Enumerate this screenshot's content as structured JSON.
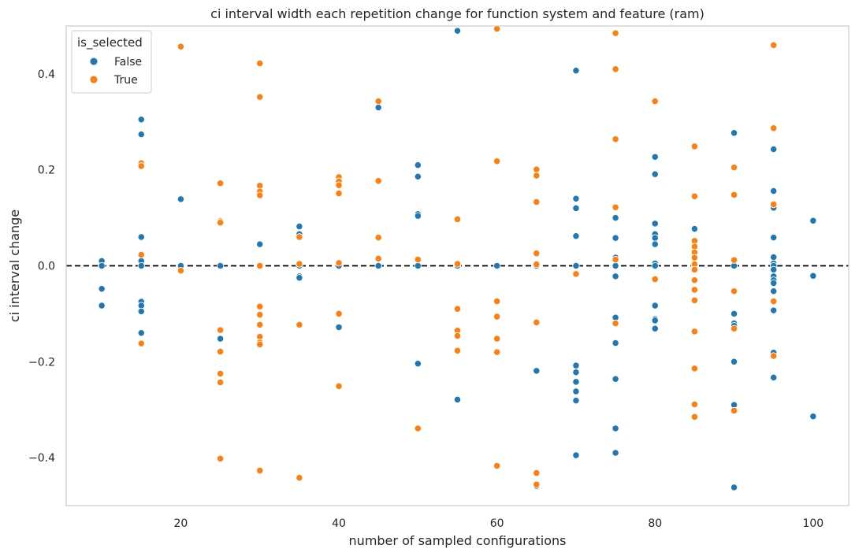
{
  "chart_data": {
    "type": "scatter",
    "title": "ci interval width each repetition change for function system and feature (ram)",
    "xlabel": "number of sampled configurations",
    "ylabel": "ci interval change",
    "xlim": [
      5.5,
      104.5
    ],
    "ylim": [
      -0.5,
      0.5
    ],
    "xticks": [
      20,
      40,
      60,
      80,
      100
    ],
    "yticks": [
      -0.4,
      -0.2,
      0.0,
      0.2,
      0.4
    ],
    "ytick_labels": [
      "−0.4",
      "−0.2",
      "0.0",
      "0.2",
      "0.4"
    ],
    "grid": false,
    "reference_line": {
      "y": 0.0,
      "style": "dashed",
      "color": "#000000"
    },
    "legend": {
      "title": "is_selected",
      "position": "top-left"
    },
    "series": [
      {
        "name": "False",
        "color": "#1f77b4",
        "points": [
          [
            10,
            0.01
          ],
          [
            10,
            0.0
          ],
          [
            10,
            -0.048
          ],
          [
            10,
            -0.083
          ],
          [
            15,
            0.305
          ],
          [
            15,
            0.274
          ],
          [
            15,
            0.06
          ],
          [
            15,
            0.01
          ],
          [
            15,
            0.0
          ],
          [
            15,
            -0.075
          ],
          [
            15,
            -0.083
          ],
          [
            15,
            -0.095
          ],
          [
            15,
            -0.14
          ],
          [
            20,
            0.139
          ],
          [
            20,
            0.0
          ],
          [
            25,
            0.0
          ],
          [
            25,
            -0.152
          ],
          [
            30,
            0.045
          ],
          [
            35,
            0.082
          ],
          [
            35,
            0.066
          ],
          [
            35,
            0.0
          ],
          [
            35,
            -0.022
          ],
          [
            35,
            -0.025
          ],
          [
            40,
            0.0
          ],
          [
            40,
            -0.128
          ],
          [
            45,
            0.33
          ],
          [
            45,
            0.0
          ],
          [
            50,
            0.21
          ],
          [
            50,
            0.186
          ],
          [
            50,
            0.108
          ],
          [
            50,
            0.104
          ],
          [
            50,
            0.0
          ],
          [
            50,
            -0.204
          ],
          [
            55,
            0.49
          ],
          [
            55,
            0.0
          ],
          [
            55,
            -0.279
          ],
          [
            60,
            0.0
          ],
          [
            65,
            0.0
          ],
          [
            65,
            -0.219
          ],
          [
            65,
            -0.459
          ],
          [
            70,
            0.407
          ],
          [
            70,
            0.14
          ],
          [
            70,
            0.12
          ],
          [
            70,
            0.062
          ],
          [
            70,
            0.0
          ],
          [
            70,
            -0.208
          ],
          [
            70,
            -0.222
          ],
          [
            70,
            -0.242
          ],
          [
            70,
            -0.262
          ],
          [
            70,
            -0.281
          ],
          [
            70,
            -0.395
          ],
          [
            75,
            0.1
          ],
          [
            75,
            0.058
          ],
          [
            75,
            0.017
          ],
          [
            75,
            0.0
          ],
          [
            75,
            -0.022
          ],
          [
            75,
            -0.108
          ],
          [
            75,
            -0.161
          ],
          [
            75,
            -0.236
          ],
          [
            75,
            -0.339
          ],
          [
            75,
            -0.39
          ],
          [
            80,
            0.227
          ],
          [
            80,
            0.191
          ],
          [
            80,
            0.088
          ],
          [
            80,
            0.066
          ],
          [
            80,
            0.058
          ],
          [
            80,
            0.045
          ],
          [
            80,
            0.005
          ],
          [
            80,
            0.0
          ],
          [
            80,
            -0.083
          ],
          [
            80,
            -0.111
          ],
          [
            80,
            -0.114
          ],
          [
            80,
            -0.131
          ],
          [
            85,
            0.077
          ],
          [
            85,
            0.0
          ],
          [
            90,
            0.277
          ],
          [
            90,
            0.0
          ],
          [
            90,
            -0.1
          ],
          [
            90,
            -0.12
          ],
          [
            90,
            -0.125
          ],
          [
            90,
            -0.2
          ],
          [
            90,
            -0.29
          ],
          [
            90,
            -0.462
          ],
          [
            95,
            0.243
          ],
          [
            95,
            0.156
          ],
          [
            95,
            0.121
          ],
          [
            95,
            0.059
          ],
          [
            95,
            0.018
          ],
          [
            95,
            0.005
          ],
          [
            95,
            0.0
          ],
          [
            95,
            -0.008
          ],
          [
            95,
            -0.022
          ],
          [
            95,
            -0.03
          ],
          [
            95,
            -0.036
          ],
          [
            95,
            -0.053
          ],
          [
            95,
            -0.093
          ],
          [
            95,
            -0.181
          ],
          [
            95,
            -0.233
          ],
          [
            100,
            0.094
          ],
          [
            100,
            -0.021
          ],
          [
            100,
            -0.314
          ]
        ]
      },
      {
        "name": "True",
        "color": "#ff7f0e",
        "points": [
          [
            15,
            0.214
          ],
          [
            15,
            0.208
          ],
          [
            15,
            0.023
          ],
          [
            15,
            -0.162
          ],
          [
            20,
            0.457
          ],
          [
            20,
            -0.01
          ],
          [
            25,
            0.172
          ],
          [
            25,
            0.093
          ],
          [
            25,
            0.09
          ],
          [
            25,
            -0.134
          ],
          [
            25,
            -0.179
          ],
          [
            25,
            -0.225
          ],
          [
            25,
            -0.243
          ],
          [
            25,
            -0.402
          ],
          [
            30,
            0.422
          ],
          [
            30,
            0.352
          ],
          [
            30,
            0.167
          ],
          [
            30,
            0.155
          ],
          [
            30,
            0.147
          ],
          [
            30,
            0.0
          ],
          [
            30,
            -0.085
          ],
          [
            30,
            -0.102
          ],
          [
            30,
            -0.123
          ],
          [
            30,
            -0.148
          ],
          [
            30,
            -0.16
          ],
          [
            30,
            -0.164
          ],
          [
            30,
            -0.427
          ],
          [
            35,
            0.06
          ],
          [
            35,
            0.004
          ],
          [
            35,
            -0.123
          ],
          [
            35,
            -0.442
          ],
          [
            40,
            0.185
          ],
          [
            40,
            0.176
          ],
          [
            40,
            0.168
          ],
          [
            40,
            0.151
          ],
          [
            40,
            0.006
          ],
          [
            40,
            -0.1
          ],
          [
            40,
            -0.251
          ],
          [
            45,
            0.343
          ],
          [
            45,
            0.177
          ],
          [
            45,
            0.059
          ],
          [
            45,
            0.015
          ],
          [
            50,
            0.013
          ],
          [
            50,
            -0.339
          ],
          [
            55,
            0.097
          ],
          [
            55,
            0.004
          ],
          [
            55,
            -0.09
          ],
          [
            55,
            -0.135
          ],
          [
            55,
            -0.146
          ],
          [
            55,
            -0.177
          ],
          [
            60,
            0.494
          ],
          [
            60,
            0.218
          ],
          [
            60,
            -0.074
          ],
          [
            60,
            -0.106
          ],
          [
            60,
            -0.152
          ],
          [
            60,
            -0.18
          ],
          [
            60,
            -0.417
          ],
          [
            65,
            0.201
          ],
          [
            65,
            0.188
          ],
          [
            65,
            0.133
          ],
          [
            65,
            0.026
          ],
          [
            65,
            0.003
          ],
          [
            65,
            -0.118
          ],
          [
            65,
            -0.432
          ],
          [
            65,
            -0.456
          ],
          [
            70,
            -0.017
          ],
          [
            75,
            0.485
          ],
          [
            75,
            0.41
          ],
          [
            75,
            0.264
          ],
          [
            75,
            0.122
          ],
          [
            75,
            0.013
          ],
          [
            75,
            -0.12
          ],
          [
            80,
            0.343
          ],
          [
            80,
            -0.028
          ],
          [
            85,
            0.249
          ],
          [
            85,
            0.145
          ],
          [
            85,
            0.052
          ],
          [
            85,
            0.04
          ],
          [
            85,
            0.028
          ],
          [
            85,
            0.017
          ],
          [
            85,
            0.003
          ],
          [
            85,
            -0.008
          ],
          [
            85,
            -0.03
          ],
          [
            85,
            -0.05
          ],
          [
            85,
            -0.072
          ],
          [
            85,
            -0.137
          ],
          [
            85,
            -0.214
          ],
          [
            85,
            -0.289
          ],
          [
            85,
            -0.315
          ],
          [
            90,
            0.205
          ],
          [
            90,
            0.148
          ],
          [
            90,
            0.012
          ],
          [
            90,
            -0.053
          ],
          [
            90,
            -0.131
          ],
          [
            90,
            -0.302
          ],
          [
            95,
            0.46
          ],
          [
            95,
            0.287
          ],
          [
            95,
            0.128
          ],
          [
            95,
            -0.074
          ],
          [
            95,
            -0.188
          ]
        ]
      }
    ]
  }
}
